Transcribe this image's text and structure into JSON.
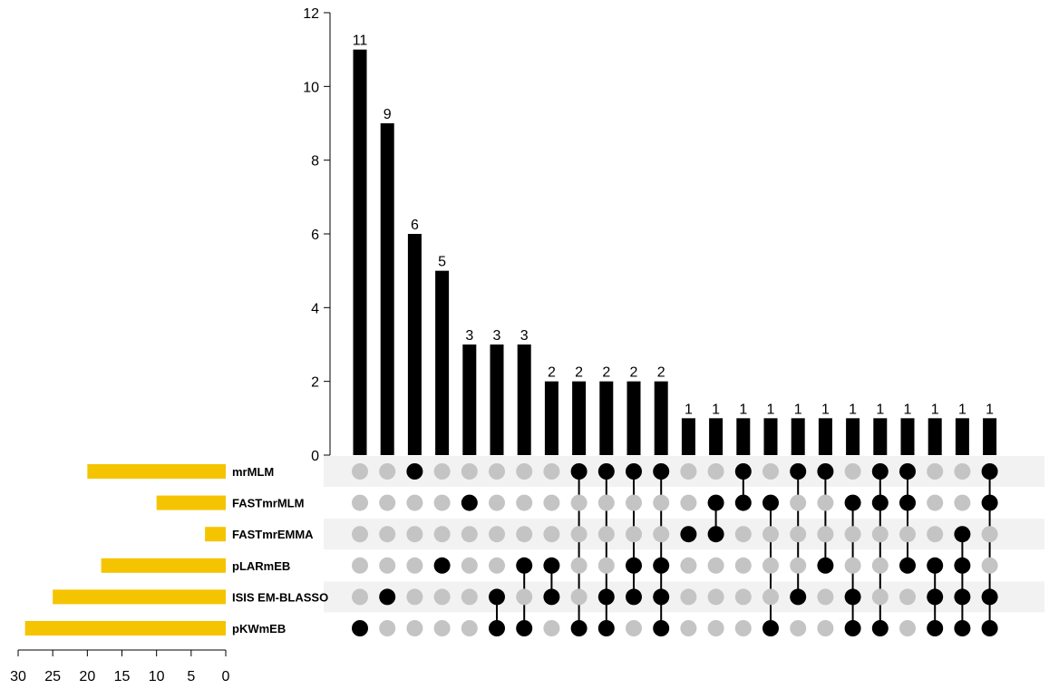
{
  "chart_data": {
    "type": "upset",
    "sets": [
      "mrMLM",
      "FASTmrMLM",
      "FASTmrEMMA",
      "pLARmEB",
      "ISIS EM-BLASSO",
      "pKWmEB"
    ],
    "set_sizes": [
      20,
      10,
      3,
      18,
      25,
      29
    ],
    "set_size_axis": {
      "ticks": [
        30,
        25,
        20,
        15,
        10,
        5,
        0
      ],
      "lim": [
        0,
        30
      ]
    },
    "intersection_axis": {
      "ticks": [
        0,
        2,
        4,
        6,
        8,
        10,
        12
      ],
      "lim": [
        0,
        12
      ]
    },
    "intersections": [
      {
        "sets": [
          "pKWmEB"
        ],
        "value": 11
      },
      {
        "sets": [
          "ISIS EM-BLASSO"
        ],
        "value": 9
      },
      {
        "sets": [
          "mrMLM"
        ],
        "value": 6
      },
      {
        "sets": [
          "pLARmEB"
        ],
        "value": 5
      },
      {
        "sets": [
          "FASTmrMLM"
        ],
        "value": 3
      },
      {
        "sets": [
          "ISIS EM-BLASSO",
          "pKWmEB"
        ],
        "value": 3
      },
      {
        "sets": [
          "pLARmEB",
          "pKWmEB"
        ],
        "value": 3
      },
      {
        "sets": [
          "pLARmEB",
          "ISIS EM-BLASSO"
        ],
        "value": 2
      },
      {
        "sets": [
          "mrMLM",
          "pKWmEB"
        ],
        "value": 2
      },
      {
        "sets": [
          "mrMLM",
          "ISIS EM-BLASSO",
          "pKWmEB"
        ],
        "value": 2
      },
      {
        "sets": [
          "mrMLM",
          "pLARmEB",
          "ISIS EM-BLASSO"
        ],
        "value": 2
      },
      {
        "sets": [
          "mrMLM",
          "pLARmEB",
          "ISIS EM-BLASSO",
          "pKWmEB"
        ],
        "value": 2
      },
      {
        "sets": [
          "FASTmrEMMA"
        ],
        "value": 1
      },
      {
        "sets": [
          "FASTmrMLM",
          "FASTmrEMMA"
        ],
        "value": 1
      },
      {
        "sets": [
          "mrMLM",
          "FASTmrMLM"
        ],
        "value": 1
      },
      {
        "sets": [
          "FASTmrMLM",
          "pKWmEB"
        ],
        "value": 1
      },
      {
        "sets": [
          "mrMLM",
          "ISIS EM-BLASSO"
        ],
        "value": 1
      },
      {
        "sets": [
          "mrMLM",
          "pLARmEB"
        ],
        "value": 1
      },
      {
        "sets": [
          "FASTmrMLM",
          "ISIS EM-BLASSO",
          "pKWmEB"
        ],
        "value": 1
      },
      {
        "sets": [
          "mrMLM",
          "FASTmrMLM",
          "pKWmEB"
        ],
        "value": 1
      },
      {
        "sets": [
          "mrMLM",
          "FASTmrMLM",
          "pLARmEB"
        ],
        "value": 1
      },
      {
        "sets": [
          "pLARmEB",
          "ISIS EM-BLASSO",
          "pKWmEB"
        ],
        "value": 1
      },
      {
        "sets": [
          "FASTmrEMMA",
          "pLARmEB",
          "ISIS EM-BLASSO",
          "pKWmEB"
        ],
        "value": 1
      },
      {
        "sets": [
          "mrMLM",
          "FASTmrMLM",
          "ISIS EM-BLASSO",
          "pKWmEB"
        ],
        "value": 1
      }
    ],
    "colors": {
      "bar": "#000000",
      "set_bar": "#f5c400",
      "dot_active": "#000000",
      "dot_inactive": "#c4c4c4",
      "row_shade": "#f2f2f2"
    }
  }
}
